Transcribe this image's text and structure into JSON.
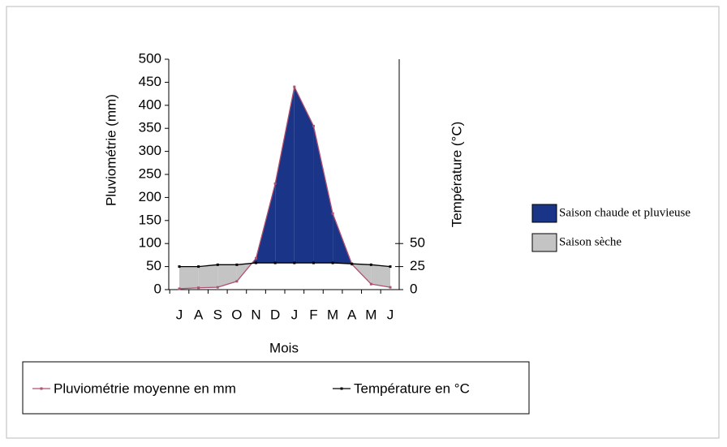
{
  "chart_data": {
    "type": "line",
    "x_label": "Mois",
    "y_label": "Pluviométrie (mm)",
    "y2_label": "Température (°C)",
    "categories": [
      "J",
      "A",
      "S",
      "O",
      "N",
      "D",
      "J",
      "F",
      "M",
      "A",
      "M",
      "J"
    ],
    "ylim": [
      0,
      500
    ],
    "yticks": [
      0,
      50,
      100,
      150,
      200,
      250,
      300,
      350,
      400,
      450,
      500
    ],
    "y2lim": [
      0,
      250
    ],
    "y2ticks": [
      0,
      25,
      50
    ],
    "series": [
      {
        "name": "Pluviométrie moyenne en mm",
        "color": "#b05070",
        "axis": "y",
        "values": [
          2,
          4,
          5,
          18,
          68,
          230,
          440,
          355,
          165,
          55,
          12,
          5
        ]
      },
      {
        "name": "Température en °C",
        "color": "#000000",
        "axis": "y2",
        "values": [
          25,
          25,
          27,
          27,
          29,
          29,
          29,
          29,
          29,
          28,
          27,
          25
        ]
      }
    ],
    "areas": [
      {
        "name": "Saison chaude et pluvieuse",
        "color": "#1a3488"
      },
      {
        "name": "Saison sèche",
        "color": "#c4c4c4"
      }
    ]
  }
}
